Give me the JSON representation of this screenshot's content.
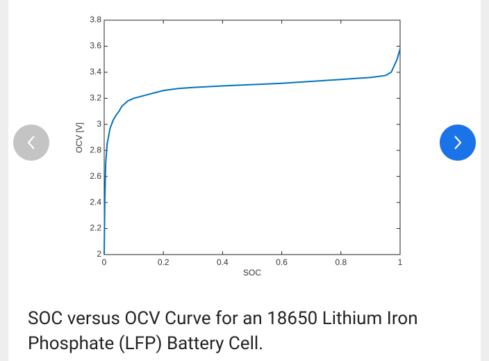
{
  "chart_data": {
    "type": "line",
    "xlabel": "SOC",
    "ylabel": "OCV [V]",
    "x": [
      0,
      0.002,
      0.005,
      0.01,
      0.02,
      0.03,
      0.04,
      0.05,
      0.06,
      0.08,
      0.1,
      0.15,
      0.2,
      0.25,
      0.3,
      0.4,
      0.5,
      0.6,
      0.7,
      0.8,
      0.9,
      0.95,
      0.97,
      0.99,
      1.0
    ],
    "values": [
      2.0,
      2.4,
      2.7,
      2.85,
      2.97,
      3.03,
      3.07,
      3.1,
      3.14,
      3.18,
      3.2,
      3.23,
      3.26,
      3.275,
      3.283,
      3.295,
      3.305,
      3.315,
      3.33,
      3.345,
      3.36,
      3.375,
      3.4,
      3.5,
      3.58
    ],
    "color": "#0072bd",
    "xlim": [
      0,
      1
    ],
    "xticks": [
      0,
      0.2,
      0.4,
      0.6,
      0.8,
      1
    ],
    "ylim": [
      2,
      3.8
    ],
    "yticks": [
      2,
      2.2,
      2.4,
      2.6,
      2.8,
      3,
      3.2,
      3.4,
      3.6,
      3.8
    ],
    "grid": false
  },
  "caption": "SOC versus OCV Curve for an 18650 Lithium Iron Phosphate (LFP) Battery Cell."
}
